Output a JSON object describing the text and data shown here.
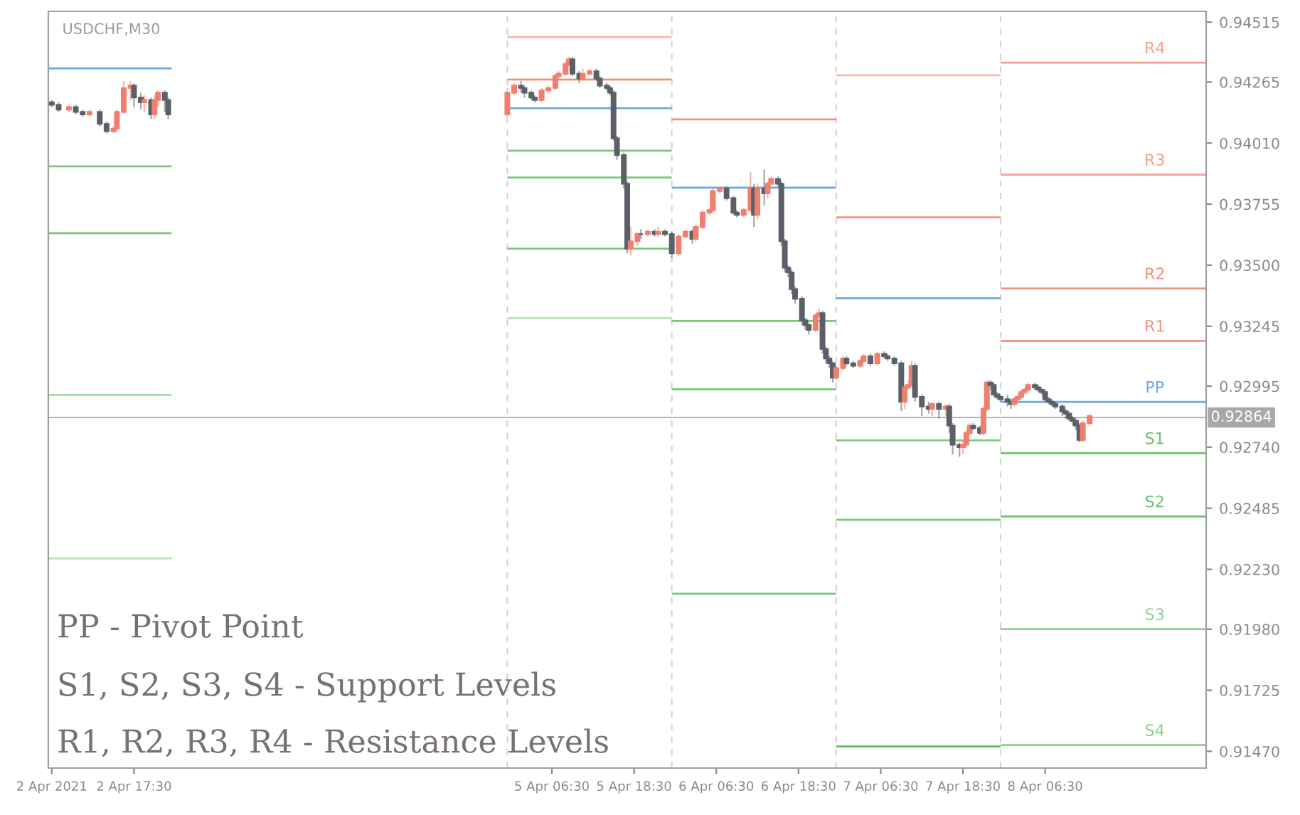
{
  "chart_data": {
    "type": "candlestick",
    "title": "USDCHF,M30",
    "xlim": [
      "2021-04-02T05:00",
      "2021-04-09T06:00"
    ],
    "xticks": [
      {
        "value": "2021-04-02T05:30",
        "label": "2 Apr 2021"
      },
      {
        "value": "2021-04-02T17:30",
        "label": "2 Apr 17:30"
      },
      {
        "value": "2021-04-05T06:30",
        "label": "5 Apr 06:30"
      },
      {
        "value": "2021-04-05T18:30",
        "label": "5 Apr 18:30"
      },
      {
        "value": "2021-04-06T06:30",
        "label": "6 Apr 06:30"
      },
      {
        "value": "2021-04-06T18:30",
        "label": "6 Apr 18:30"
      },
      {
        "value": "2021-04-07T06:30",
        "label": "7 Apr 06:30"
      },
      {
        "value": "2021-04-07T18:30",
        "label": "7 Apr 18:30"
      },
      {
        "value": "2021-04-08T06:30",
        "label": "8 Apr 06:30"
      }
    ],
    "ylim": [
      0.914,
      0.9456
    ],
    "yticks": [
      0.94515,
      0.94265,
      {
        "value": 0.9401,
        "label": "0.94010"
      },
      0.93755,
      {
        "value": 0.935,
        "label": "0.93500"
      },
      0.93245,
      0.92995,
      {
        "value": 0.9274,
        "label": "0.92740"
      },
      0.92485,
      {
        "value": 0.9223,
        "label": "0.92230"
      },
      {
        "value": 0.9198,
        "label": "0.91980"
      },
      0.91725,
      {
        "value": 0.9147,
        "label": "0.91470"
      }
    ],
    "grid": false,
    "legend": false,
    "ref_lines": [
      {
        "axis": "x",
        "value": "2021-04-05T00:00",
        "color": "#d6d6d6",
        "line_style": "dashed"
      },
      {
        "axis": "x",
        "value": "2021-04-06T00:00",
        "color": "#d6d6d6",
        "line_style": "dashed"
      },
      {
        "axis": "x",
        "value": "2021-04-07T00:00",
        "color": "#d6d6d6",
        "line_style": "dashed"
      },
      {
        "axis": "x",
        "value": "2021-04-08T00:00",
        "color": "#d6d6d6",
        "line_style": "dashed"
      },
      {
        "axis": "y",
        "value": 0.92864,
        "label": "0.92864",
        "color": "#a8a8a8",
        "line_style": "solid"
      }
    ],
    "series": [
      {
        "type": "line",
        "x": [
          "2021-04-02T05:00",
          "2021-04-02T23:00"
        ],
        "values": [
          0.94322,
          0.94322
        ],
        "color": "#6aa6ea"
      },
      {
        "type": "line",
        "x": [
          "2021-04-02T05:00",
          "2021-04-02T23:00"
        ],
        "values": [
          0.93913,
          0.93913
        ],
        "color": "#79c979"
      },
      {
        "type": "line",
        "x": [
          "2021-04-02T05:00",
          "2021-04-02T23:00"
        ],
        "values": [
          0.93634,
          0.93634
        ],
        "color": "#79c979"
      },
      {
        "type": "line",
        "x": [
          "2021-04-02T05:00",
          "2021-04-02T23:00"
        ],
        "values": [
          0.92958,
          0.92958
        ],
        "color": "#a6daa6"
      },
      {
        "type": "line",
        "x": [
          "2021-04-02T05:00",
          "2021-04-02T23:00"
        ],
        "values": [
          0.92276,
          0.92276
        ],
        "color": "#b8e2b8"
      },
      {
        "type": "line",
        "x": [
          "2021-04-05T00:00",
          "2021-04-06T00:00"
        ],
        "values": [
          0.94453,
          0.94453
        ],
        "color": "#f9b8ac"
      },
      {
        "type": "line",
        "x": [
          "2021-04-05T00:00",
          "2021-04-06T00:00"
        ],
        "values": [
          0.94275,
          0.94275
        ],
        "color": "#f5907f"
      },
      {
        "type": "line",
        "x": [
          "2021-04-05T00:00",
          "2021-04-06T00:00"
        ],
        "values": [
          0.94156,
          0.94156
        ],
        "color": "#6aa6ea"
      },
      {
        "type": "line",
        "x": [
          "2021-04-05T00:00",
          "2021-04-06T00:00"
        ],
        "values": [
          0.93978,
          0.93978
        ],
        "color": "#79c979"
      },
      {
        "type": "line",
        "x": [
          "2021-04-05T00:00",
          "2021-04-06T00:00"
        ],
        "values": [
          0.93866,
          0.93866
        ],
        "color": "#79c979"
      },
      {
        "type": "line",
        "x": [
          "2021-04-05T00:00",
          "2021-04-06T00:00"
        ],
        "values": [
          0.93569,
          0.93569
        ],
        "color": "#79c979"
      },
      {
        "type": "line",
        "x": [
          "2021-04-05T00:00",
          "2021-04-06T00:00"
        ],
        "values": [
          0.93279,
          0.93279
        ],
        "color": "#b8e2b8"
      },
      {
        "type": "line",
        "x": [
          "2021-04-06T00:00",
          "2021-04-07T00:00"
        ],
        "values": [
          0.94109,
          0.94109
        ],
        "color": "#f5907f"
      },
      {
        "type": "line",
        "x": [
          "2021-04-06T00:00",
          "2021-04-07T00:00"
        ],
        "values": [
          0.93824,
          0.93824
        ],
        "color": "#6aa6ea"
      },
      {
        "type": "line",
        "x": [
          "2021-04-06T00:00",
          "2021-04-07T00:00"
        ],
        "values": [
          0.93267,
          0.93267
        ],
        "color": "#79c979"
      },
      {
        "type": "line",
        "x": [
          "2021-04-06T00:00",
          "2021-04-07T00:00"
        ],
        "values": [
          0.92982,
          0.92982
        ],
        "color": "#79c979"
      },
      {
        "type": "line",
        "x": [
          "2021-04-06T00:00",
          "2021-04-07T00:00"
        ],
        "values": [
          0.92128,
          0.92128
        ],
        "color": "#79c979"
      },
      {
        "type": "line",
        "x": [
          "2021-04-07T00:00",
          "2021-04-08T00:00"
        ],
        "values": [
          0.94293,
          0.94293
        ],
        "color": "#f9b8ac"
      },
      {
        "type": "line",
        "x": [
          "2021-04-07T00:00",
          "2021-04-08T00:00"
        ],
        "values": [
          0.937,
          0.937
        ],
        "color": "#f5907f"
      },
      {
        "type": "line",
        "x": [
          "2021-04-07T00:00",
          "2021-04-08T00:00"
        ],
        "values": [
          0.93362,
          0.93362
        ],
        "color": "#6aa6ea"
      },
      {
        "type": "line",
        "x": [
          "2021-04-07T00:00",
          "2021-04-08T00:00"
        ],
        "values": [
          0.92769,
          0.92769
        ],
        "color": "#79c979"
      },
      {
        "type": "line",
        "x": [
          "2021-04-07T00:00",
          "2021-04-08T00:00"
        ],
        "values": [
          0.92437,
          0.92437
        ],
        "color": "#79c979"
      },
      {
        "type": "line",
        "x": [
          "2021-04-07T00:00",
          "2021-04-08T00:00"
        ],
        "values": [
          0.9149,
          0.9149
        ],
        "color": "#5cb85c"
      },
      {
        "type": "line",
        "x": [
          "2021-04-08T00:00",
          "2021-04-09T06:00"
        ],
        "values": [
          0.94346,
          0.94346
        ],
        "color": "#f4a090"
      },
      {
        "type": "line",
        "x": [
          "2021-04-08T00:00",
          "2021-04-09T06:00"
        ],
        "values": [
          0.93878,
          0.93878
        ],
        "color": "#f4a090"
      },
      {
        "type": "line",
        "x": [
          "2021-04-08T00:00",
          "2021-04-09T06:00"
        ],
        "values": [
          0.93403,
          0.93403
        ],
        "color": "#f5907f"
      },
      {
        "type": "line",
        "x": [
          "2021-04-08T00:00",
          "2021-04-09T06:00"
        ],
        "values": [
          0.93184,
          0.93184
        ],
        "color": "#f5907f"
      },
      {
        "type": "line",
        "x": [
          "2021-04-08T00:00",
          "2021-04-09T06:00"
        ],
        "values": [
          0.92929,
          0.92929
        ],
        "color": "#6aa6ea"
      },
      {
        "type": "line",
        "x": [
          "2021-04-08T00:00",
          "2021-04-09T06:00"
        ],
        "values": [
          0.92715,
          0.92715
        ],
        "color": "#6bbf6b"
      },
      {
        "type": "line",
        "x": [
          "2021-04-08T00:00",
          "2021-04-09T06:00"
        ],
        "values": [
          0.92451,
          0.92451
        ],
        "color": "#6bbf6b"
      },
      {
        "type": "line",
        "x": [
          "2021-04-08T00:00",
          "2021-04-09T06:00"
        ],
        "values": [
          0.9198,
          0.9198
        ],
        "color": "#8fcf8f"
      },
      {
        "type": "line",
        "x": [
          "2021-04-08T00:00",
          "2021-04-09T06:00"
        ],
        "values": [
          0.91496,
          0.91496
        ],
        "color": "#8fcf8f"
      },
      {
        "x": [
          "2021-04-02T05:30",
          "2021-04-02T06:30",
          "2021-04-02T08:00",
          "2021-04-02T09:00",
          "2021-04-02T10:00",
          "2021-04-02T11:00",
          "2021-04-02T12:30",
          "2021-04-02T13:30",
          "2021-04-02T14:30",
          "2021-04-02T15:00",
          "2021-04-02T16:00",
          "2021-04-02T17:00",
          "2021-04-02T17:30",
          "2021-04-02T18:30",
          "2021-04-02T19:00",
          "2021-04-02T20:00",
          "2021-04-02T20:30",
          "2021-04-02T21:00",
          "2021-04-02T22:00",
          "2021-04-02T22:30",
          "2021-04-05T00:00",
          "2021-04-05T01:00",
          "2021-04-05T02:00",
          "2021-04-05T02:30",
          "2021-04-05T03:30",
          "2021-04-05T04:00",
          "2021-04-05T05:00",
          "2021-04-05T06:00",
          "2021-04-05T07:00",
          "2021-04-05T07:30",
          "2021-04-05T08:30",
          "2021-04-05T09:00",
          "2021-04-05T09:30",
          "2021-04-05T10:30",
          "2021-04-05T11:00",
          "2021-04-05T12:00",
          "2021-04-05T13:00",
          "2021-04-05T13:30",
          "2021-04-05T14:30",
          "2021-04-05T15:00",
          "2021-04-05T15:30",
          "2021-04-05T16:00",
          "2021-04-05T17:00",
          "2021-04-05T17:30",
          "2021-04-05T18:00",
          "2021-04-05T19:00",
          "2021-04-05T19:30",
          "2021-04-05T20:30",
          "2021-04-05T21:30",
          "2021-04-05T22:00",
          "2021-04-05T23:00",
          "2021-04-06T00:00",
          "2021-04-06T01:00",
          "2021-04-06T02:00",
          "2021-04-06T03:00",
          "2021-04-06T03:30",
          "2021-04-06T04:30",
          "2021-04-06T05:30",
          "2021-04-06T06:00",
          "2021-04-06T07:00",
          "2021-04-06T08:00",
          "2021-04-06T09:00",
          "2021-04-06T09:30",
          "2021-04-06T10:30",
          "2021-04-06T11:30",
          "2021-04-06T12:00",
          "2021-04-06T12:30",
          "2021-04-06T13:30",
          "2021-04-06T14:00",
          "2021-04-06T14:30",
          "2021-04-06T15:30",
          "2021-04-06T16:00",
          "2021-04-06T16:30",
          "2021-04-06T17:00",
          "2021-04-06T17:30",
          "2021-04-06T18:00",
          "2021-04-06T19:00",
          "2021-04-06T19:30",
          "2021-04-06T20:00",
          "2021-04-06T21:00",
          "2021-04-06T21:30",
          "2021-04-06T22:00",
          "2021-04-06T22:30",
          "2021-04-06T23:00",
          "2021-04-06T23:30",
          "2021-04-07T00:00",
          "2021-04-07T01:00",
          "2021-04-07T01:30",
          "2021-04-07T02:30",
          "2021-04-07T03:30",
          "2021-04-07T04:00",
          "2021-04-07T05:00",
          "2021-04-07T06:00",
          "2021-04-07T07:00",
          "2021-04-07T07:30",
          "2021-04-07T08:30",
          "2021-04-07T09:30",
          "2021-04-07T10:00",
          "2021-04-07T10:30",
          "2021-04-07T11:00",
          "2021-04-07T11:30",
          "2021-04-07T12:30",
          "2021-04-07T13:30",
          "2021-04-07T14:00",
          "2021-04-07T15:00",
          "2021-04-07T16:00",
          "2021-04-07T16:30",
          "2021-04-07T17:00",
          "2021-04-07T18:00",
          "2021-04-07T18:30",
          "2021-04-07T19:00",
          "2021-04-07T19:30",
          "2021-04-07T20:00",
          "2021-04-07T21:00",
          "2021-04-07T21:30",
          "2021-04-07T22:00",
          "2021-04-07T22:30",
          "2021-04-07T23:00",
          "2021-04-07T23:30",
          "2021-04-08T00:00",
          "2021-04-08T01:00",
          "2021-04-08T01:30",
          "2021-04-08T02:00",
          "2021-04-08T02:30",
          "2021-04-08T03:00",
          "2021-04-08T03:30",
          "2021-04-08T04:00",
          "2021-04-08T05:00",
          "2021-04-08T05:30",
          "2021-04-08T06:00",
          "2021-04-08T06:30",
          "2021-04-08T07:00",
          "2021-04-08T07:30",
          "2021-04-08T08:00",
          "2021-04-08T09:00",
          "2021-04-08T09:30",
          "2021-04-08T10:00",
          "2021-04-08T10:30",
          "2021-04-08T11:00",
          "2021-04-08T11:30",
          "2021-04-08T12:00",
          "2021-04-08T13:00"
        ],
        "ohlc": [
          [
            0.9418,
            0.9419,
            0.9416,
            0.9417
          ],
          [
            0.9417,
            0.9418,
            0.9414,
            0.9415
          ],
          [
            0.9415,
            0.9417,
            0.9414,
            0.9416
          ],
          [
            0.9416,
            0.9417,
            0.9413,
            0.9414
          ],
          [
            0.9414,
            0.9415,
            0.9412,
            0.9413
          ],
          [
            0.9413,
            0.9415,
            0.9412,
            0.9414
          ],
          [
            0.9414,
            0.9415,
            0.9408,
            0.9409
          ],
          [
            0.9409,
            0.941,
            0.9405,
            0.9406
          ],
          [
            0.9406,
            0.9408,
            0.9405,
            0.9407
          ],
          [
            0.9407,
            0.9415,
            0.9406,
            0.9414
          ],
          [
            0.9414,
            0.9427,
            0.9413,
            0.9424
          ],
          [
            0.9424,
            0.9427,
            0.9419,
            0.9425
          ],
          [
            0.9425,
            0.9426,
            0.9416,
            0.942
          ],
          [
            0.942,
            0.9422,
            0.9415,
            0.9418
          ],
          [
            0.9418,
            0.9421,
            0.9414,
            0.9419
          ],
          [
            0.9419,
            0.942,
            0.9411,
            0.9413
          ],
          [
            0.9413,
            0.9421,
            0.9411,
            0.9419
          ],
          [
            0.9419,
            0.9423,
            0.9416,
            0.9422
          ],
          [
            0.9422,
            0.9423,
            0.9414,
            0.9419
          ],
          [
            0.9419,
            0.942,
            0.9411,
            0.9413
          ],
          [
            0.9413,
            0.9424,
            0.9412,
            0.9422
          ],
          [
            0.9422,
            0.9426,
            0.9421,
            0.9425
          ],
          [
            0.9425,
            0.9427,
            0.9422,
            0.9424
          ],
          [
            0.9424,
            0.9425,
            0.942,
            0.9422
          ],
          [
            0.9422,
            0.9423,
            0.9419,
            0.942
          ],
          [
            0.942,
            0.9421,
            0.9418,
            0.9419
          ],
          [
            0.9419,
            0.9424,
            0.9418,
            0.9423
          ],
          [
            0.9423,
            0.9425,
            0.9422,
            0.9424
          ],
          [
            0.9424,
            0.943,
            0.9423,
            0.9429
          ],
          [
            0.9429,
            0.9431,
            0.9428,
            0.943
          ],
          [
            0.943,
            0.9435,
            0.9429,
            0.9434
          ],
          [
            0.9434,
            0.9437,
            0.9433,
            0.9436
          ],
          [
            0.9436,
            0.9437,
            0.9429,
            0.943
          ],
          [
            0.943,
            0.9431,
            0.9426,
            0.9428
          ],
          [
            0.9428,
            0.9432,
            0.9427,
            0.943
          ],
          [
            0.943,
            0.9432,
            0.9429,
            0.9431
          ],
          [
            0.9431,
            0.9432,
            0.9427,
            0.9428
          ],
          [
            0.9428,
            0.9429,
            0.9424,
            0.9425
          ],
          [
            0.9425,
            0.9426,
            0.9423,
            0.9424
          ],
          [
            0.9424,
            0.9425,
            0.9421,
            0.9422
          ],
          [
            0.9422,
            0.9423,
            0.9402,
            0.9403
          ],
          [
            0.9403,
            0.9404,
            0.9394,
            0.9396
          ],
          [
            0.9396,
            0.9397,
            0.9382,
            0.9384
          ],
          [
            0.9384,
            0.9385,
            0.9355,
            0.9357
          ],
          [
            0.9357,
            0.9366,
            0.9354,
            0.936
          ],
          [
            0.936,
            0.9364,
            0.9358,
            0.9363
          ],
          [
            0.9363,
            0.9365,
            0.9361,
            0.9363
          ],
          [
            0.9363,
            0.9365,
            0.9362,
            0.9364
          ],
          [
            0.9364,
            0.9365,
            0.9362,
            0.9363
          ],
          [
            0.9363,
            0.9366,
            0.9362,
            0.9364
          ],
          [
            0.9364,
            0.9365,
            0.9362,
            0.9363
          ],
          [
            0.9363,
            0.9364,
            0.9353,
            0.9355
          ],
          [
            0.9355,
            0.9363,
            0.9354,
            0.9362
          ],
          [
            0.9362,
            0.9365,
            0.9361,
            0.9364
          ],
          [
            0.9364,
            0.9365,
            0.9359,
            0.9361
          ],
          [
            0.9361,
            0.9367,
            0.936,
            0.9366
          ],
          [
            0.9366,
            0.9373,
            0.9365,
            0.9372
          ],
          [
            0.9372,
            0.9374,
            0.9371,
            0.9373
          ],
          [
            0.9373,
            0.9382,
            0.9372,
            0.9381
          ],
          [
            0.9381,
            0.9383,
            0.938,
            0.9382
          ],
          [
            0.9382,
            0.9383,
            0.9377,
            0.9378
          ],
          [
            0.9378,
            0.9379,
            0.9371,
            0.9372
          ],
          [
            0.9372,
            0.9373,
            0.937,
            0.9371
          ],
          [
            0.9371,
            0.9374,
            0.937,
            0.9373
          ],
          [
            0.9373,
            0.9389,
            0.9372,
            0.9382
          ],
          [
            0.9382,
            0.9384,
            0.9366,
            0.9371
          ],
          [
            0.9371,
            0.9384,
            0.9369,
            0.9382
          ],
          [
            0.9382,
            0.939,
            0.9375,
            0.938
          ],
          [
            0.938,
            0.9385,
            0.9378,
            0.9384
          ],
          [
            0.9384,
            0.9387,
            0.9383,
            0.9386
          ],
          [
            0.9386,
            0.9387,
            0.9383,
            0.9384
          ],
          [
            0.9384,
            0.9385,
            0.9358,
            0.936
          ],
          [
            0.936,
            0.9361,
            0.9347,
            0.9349
          ],
          [
            0.9349,
            0.935,
            0.9345,
            0.9347
          ],
          [
            0.9347,
            0.9348,
            0.9338,
            0.934
          ],
          [
            0.934,
            0.9341,
            0.9334,
            0.9336
          ],
          [
            0.9336,
            0.9337,
            0.9325,
            0.9327
          ],
          [
            0.9327,
            0.9328,
            0.9323,
            0.9325
          ],
          [
            0.9325,
            0.9326,
            0.9321,
            0.9323
          ],
          [
            0.9323,
            0.933,
            0.9322,
            0.9329
          ],
          [
            0.9329,
            0.9332,
            0.9328,
            0.933
          ],
          [
            0.933,
            0.9331,
            0.9313,
            0.9315
          ],
          [
            0.9315,
            0.9316,
            0.9309,
            0.9311
          ],
          [
            0.9311,
            0.9312,
            0.9307,
            0.9309
          ],
          [
            0.9309,
            0.931,
            0.9301,
            0.9303
          ],
          [
            0.9303,
            0.9308,
            0.9302,
            0.9307
          ],
          [
            0.9307,
            0.9312,
            0.9306,
            0.9311
          ],
          [
            0.9311,
            0.9312,
            0.9308,
            0.9309
          ],
          [
            0.9309,
            0.931,
            0.9307,
            0.9308
          ],
          [
            0.9308,
            0.9311,
            0.9307,
            0.931
          ],
          [
            0.931,
            0.9313,
            0.9309,
            0.9312
          ],
          [
            0.9312,
            0.9313,
            0.9308,
            0.9309
          ],
          [
            0.9309,
            0.9314,
            0.9308,
            0.9313
          ],
          [
            0.9313,
            0.9314,
            0.9311,
            0.9312
          ],
          [
            0.9312,
            0.9313,
            0.931,
            0.9311
          ],
          [
            0.9311,
            0.9312,
            0.9308,
            0.9309
          ],
          [
            0.9309,
            0.931,
            0.9289,
            0.9293
          ],
          [
            0.9293,
            0.93,
            0.929,
            0.9299
          ],
          [
            0.9299,
            0.9302,
            0.9298,
            0.93
          ],
          [
            0.93,
            0.931,
            0.9299,
            0.9308
          ],
          [
            0.9308,
            0.9309,
            0.9293,
            0.9295
          ],
          [
            0.9295,
            0.9296,
            0.9287,
            0.9291
          ],
          [
            0.9291,
            0.9293,
            0.9288,
            0.929
          ],
          [
            0.929,
            0.9293,
            0.9287,
            0.9292
          ],
          [
            0.9292,
            0.9293,
            0.9286,
            0.929
          ],
          [
            0.929,
            0.9292,
            0.9287,
            0.9291
          ],
          [
            0.9291,
            0.9292,
            0.928,
            0.9283
          ],
          [
            0.9283,
            0.9284,
            0.9271,
            0.9275
          ],
          [
            0.9275,
            0.9276,
            0.927,
            0.9274
          ],
          [
            0.9274,
            0.9277,
            0.9271,
            0.9275
          ],
          [
            0.9275,
            0.9281,
            0.9274,
            0.928
          ],
          [
            0.928,
            0.9284,
            0.9279,
            0.9283
          ],
          [
            0.9283,
            0.9284,
            0.9281,
            0.9282
          ],
          [
            0.9282,
            0.9283,
            0.9279,
            0.928
          ],
          [
            0.928,
            0.9291,
            0.9279,
            0.929
          ],
          [
            0.929,
            0.9302,
            0.9289,
            0.9301
          ],
          [
            0.9301,
            0.9302,
            0.9298,
            0.93
          ],
          [
            0.93,
            0.9301,
            0.9295,
            0.9296
          ],
          [
            0.9296,
            0.9297,
            0.9294,
            0.9295
          ],
          [
            0.9295,
            0.9296,
            0.9293,
            0.9294
          ],
          [
            0.9294,
            0.9296,
            0.9291,
            0.9293
          ],
          [
            0.9293,
            0.9294,
            0.929,
            0.9292
          ],
          [
            0.9292,
            0.9295,
            0.9291,
            0.9294
          ],
          [
            0.9294,
            0.9296,
            0.9293,
            0.9295
          ],
          [
            0.9295,
            0.9298,
            0.9294,
            0.9297
          ],
          [
            0.9297,
            0.9299,
            0.9296,
            0.9298
          ],
          [
            0.9298,
            0.9301,
            0.9297,
            0.93
          ],
          [
            0.93,
            0.9301,
            0.9298,
            0.9299
          ],
          [
            0.9299,
            0.93,
            0.9297,
            0.9298
          ],
          [
            0.9298,
            0.9299,
            0.9296,
            0.9297
          ],
          [
            0.9297,
            0.9298,
            0.9293,
            0.9294
          ],
          [
            0.9294,
            0.9295,
            0.9292,
            0.9293
          ],
          [
            0.9293,
            0.9294,
            0.9291,
            0.9292
          ],
          [
            0.9292,
            0.9293,
            0.929,
            0.9291
          ],
          [
            0.9291,
            0.9292,
            0.9287,
            0.9289
          ],
          [
            0.9289,
            0.929,
            0.9286,
            0.9288
          ],
          [
            0.9288,
            0.9289,
            0.9285,
            0.9286
          ],
          [
            0.9286,
            0.9287,
            0.9283,
            0.9285
          ],
          [
            0.9285,
            0.9286,
            0.9281,
            0.9283
          ],
          [
            0.9283,
            0.9284,
            0.9276,
            0.9277
          ],
          [
            0.9277,
            0.9285,
            0.9276,
            0.9284
          ],
          [
            0.9284,
            0.9288,
            0.9283,
            0.9287
          ]
        ],
        "colors": [
          "#5b6068",
          "#5b6068",
          "#ef7f6e",
          "#5b6068",
          "#5b6068",
          "#ef7f6e",
          "#5b6068",
          "#5b6068",
          "#ef7f6e",
          "#ef7f6e",
          "#ef7f6e",
          "#ef7f6e",
          "#5b6068",
          "#5b6068",
          "#ef7f6e",
          "#5b6068",
          "#ef7f6e",
          "#ef7f6e",
          "#5b6068",
          "#5b6068",
          "#ef7f6e",
          "#ef7f6e",
          "#5b6068",
          "#5b6068",
          "#5b6068",
          "#5b6068",
          "#ef7f6e",
          "#ef7f6e",
          "#ef7f6e",
          "#ef7f6e",
          "#ef7f6e",
          "#ef7f6e",
          "#5b6068",
          "#5b6068",
          "#ef7f6e",
          "#ef7f6e",
          "#5b6068",
          "#5b6068",
          "#5b6068",
          "#5b6068",
          "#5b6068",
          "#5b6068",
          "#5b6068",
          "#5b6068",
          "#ef7f6e",
          "#ef7f6e",
          "#5b6068",
          "#ef7f6e",
          "#5b6068",
          "#ef7f6e",
          "#5b6068",
          "#5b6068",
          "#ef7f6e",
          "#ef7f6e",
          "#5b6068",
          "#ef7f6e",
          "#ef7f6e",
          "#ef7f6e",
          "#ef7f6e",
          "#ef7f6e",
          "#5b6068",
          "#5b6068",
          "#5b6068",
          "#ef7f6e",
          "#ef7f6e",
          "#5b6068",
          "#ef7f6e",
          "#5b6068",
          "#ef7f6e",
          "#ef7f6e",
          "#5b6068",
          "#5b6068",
          "#5b6068",
          "#5b6068",
          "#5b6068",
          "#5b6068",
          "#5b6068",
          "#5b6068",
          "#5b6068",
          "#ef7f6e",
          "#ef7f6e",
          "#5b6068",
          "#5b6068",
          "#5b6068",
          "#5b6068",
          "#ef7f6e",
          "#ef7f6e",
          "#5b6068",
          "#5b6068",
          "#ef7f6e",
          "#ef7f6e",
          "#5b6068",
          "#ef7f6e",
          "#5b6068",
          "#5b6068",
          "#5b6068",
          "#5b6068",
          "#ef7f6e",
          "#ef7f6e",
          "#ef7f6e",
          "#5b6068",
          "#5b6068",
          "#5b6068",
          "#ef7f6e",
          "#5b6068",
          "#ef7f6e",
          "#5b6068",
          "#5b6068",
          "#5b6068",
          "#ef7f6e",
          "#ef7f6e",
          "#ef7f6e",
          "#5b6068",
          "#5b6068",
          "#ef7f6e",
          "#ef7f6e",
          "#5b6068",
          "#5b6068",
          "#5b6068",
          "#5b6068",
          "#5b6068",
          "#5b6068",
          "#ef7f6e",
          "#ef7f6e",
          "#ef7f6e",
          "#ef7f6e",
          "#ef7f6e",
          "#5b6068",
          "#5b6068",
          "#5b6068",
          "#5b6068",
          "#5b6068",
          "#5b6068",
          "#5b6068",
          "#5b6068",
          "#5b6068",
          "#5b6068",
          "#5b6068",
          "#5b6068",
          "#5b6068",
          "#ef7f6e",
          "#ef7f6e"
        ]
      }
    ],
    "annotations": [
      {
        "text": "R4",
        "x": "2021-04-08T22:30",
        "y": 0.94346
      },
      {
        "text": "R3",
        "x": "2021-04-08T22:30",
        "y": 0.93878
      },
      {
        "text": "R2",
        "x": "2021-04-08T22:30",
        "y": 0.93403
      },
      {
        "text": "R1",
        "x": "2021-04-08T22:30",
        "y": 0.93184
      },
      {
        "text": "PP",
        "x": "2021-04-08T22:30",
        "y": 0.92929
      },
      {
        "text": "S1",
        "x": "2021-04-08T22:30",
        "y": 0.92715
      },
      {
        "text": "S2",
        "x": "2021-04-08T22:30",
        "y": 0.92451
      },
      {
        "text": "S3",
        "x": "2021-04-08T22:30",
        "y": 0.9198
      },
      {
        "text": "S4",
        "x": "2021-04-08T22:30",
        "y": 0.91496
      },
      "PP - Pivot Point",
      "S1, S2, S3, S4 - Support Levels",
      "R1, R2, R3, R4 - Resistance Levels"
    ]
  }
}
